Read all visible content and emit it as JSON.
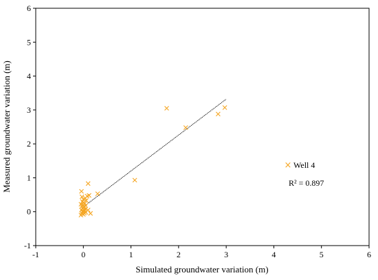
{
  "chart_data": {
    "type": "scatter",
    "xlabel": "Simulated groundwater variation (m)",
    "ylabel": "Measured groundwater variation (m)",
    "xlim": [
      -1,
      6
    ],
    "ylim": [
      -1,
      6
    ],
    "x_ticks": [
      "-1",
      "0",
      "1",
      "2",
      "3",
      "4",
      "5",
      "6"
    ],
    "y_ticks": [
      "-1",
      "0",
      "1",
      "2",
      "3",
      "4",
      "5",
      "6"
    ],
    "grid": false,
    "legend_position": "right",
    "series": [
      {
        "name": "Well 4",
        "color": "#F5A623",
        "marker": "x",
        "points": [
          [
            -0.05,
            -0.1
          ],
          [
            0.0,
            -0.08
          ],
          [
            -0.03,
            -0.05
          ],
          [
            0.02,
            -0.04
          ],
          [
            0.05,
            -0.02
          ],
          [
            -0.02,
            0.0
          ],
          [
            0.0,
            0.02
          ],
          [
            0.03,
            0.03
          ],
          [
            -0.04,
            0.05
          ],
          [
            0.01,
            0.06
          ],
          [
            0.04,
            0.08
          ],
          [
            -0.02,
            0.1
          ],
          [
            0.0,
            0.12
          ],
          [
            0.02,
            0.14
          ],
          [
            -0.03,
            0.16
          ],
          [
            0.05,
            0.18
          ],
          [
            0.0,
            0.2
          ],
          [
            -0.05,
            0.22
          ],
          [
            0.03,
            0.24
          ],
          [
            0.01,
            0.27
          ],
          [
            -0.02,
            0.3
          ],
          [
            0.06,
            0.33
          ],
          [
            0.0,
            0.36
          ],
          [
            0.04,
            0.4
          ],
          [
            -0.03,
            0.44
          ],
          [
            0.08,
            0.46
          ],
          [
            0.12,
            0.48
          ],
          [
            -0.04,
            0.6
          ],
          [
            0.1,
            0.83
          ],
          [
            0.15,
            -0.05
          ],
          [
            0.1,
            0.05
          ],
          [
            0.3,
            0.53
          ],
          [
            1.08,
            0.93
          ],
          [
            1.75,
            3.05
          ],
          [
            2.15,
            2.48
          ],
          [
            2.83,
            2.88
          ],
          [
            2.97,
            3.07
          ]
        ]
      }
    ],
    "trendline": {
      "x": [
        -0.02,
        3.0
      ],
      "y": [
        0.12,
        3.32
      ],
      "color": "#000000",
      "style": "dotted"
    },
    "annotation": "R² = 0.897"
  }
}
